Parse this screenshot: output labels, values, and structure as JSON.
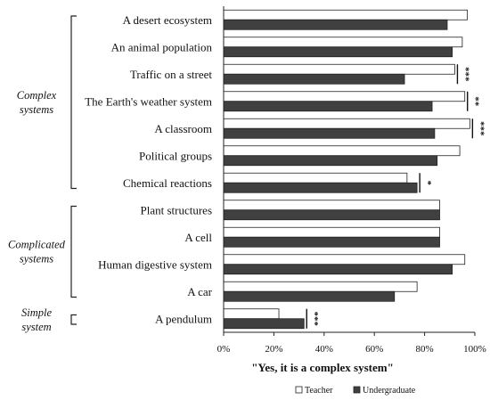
{
  "chart_data": {
    "type": "bar",
    "orientation": "horizontal",
    "xlabel": "\"Yes, it is a complex system\"",
    "ylabel": "",
    "xlim": [
      0,
      100
    ],
    "x_ticks": [
      "0%",
      "20%",
      "40%",
      "60%",
      "80%",
      "100%"
    ],
    "grid": false,
    "legend_position": "bottom-right",
    "categories": [
      "A desert ecosystem",
      "An animal population",
      "Traffic on a street",
      "The Earth's weather system",
      "A classroom",
      "Political groups",
      "Chemical reactions",
      "Plant structures",
      "A cell",
      "Human digestive system",
      "A car",
      "A pendulum"
    ],
    "series": [
      {
        "name": "Teacher",
        "color": "#ffffff",
        "values": [
          97,
          95,
          92,
          96,
          98,
          94,
          73,
          86,
          86,
          96,
          77,
          22
        ]
      },
      {
        "name": "Undergraduate",
        "color": "#404040",
        "values": [
          89,
          91,
          72,
          83,
          84,
          85,
          77,
          86,
          86,
          91,
          68,
          32
        ]
      }
    ],
    "groups": [
      {
        "label_lines": [
          "Complex",
          "systems"
        ],
        "categories": [
          0,
          6
        ]
      },
      {
        "label_lines": [
          "Complicated",
          "systems"
        ],
        "categories": [
          7,
          10
        ]
      },
      {
        "label_lines": [
          "Simple",
          "system"
        ],
        "categories": [
          11,
          11
        ]
      }
    ],
    "significance": [
      {
        "categories": [
          2,
          2
        ],
        "label": "***"
      },
      {
        "categories": [
          3,
          3
        ],
        "label": "**"
      },
      {
        "categories": [
          4,
          4
        ],
        "label": "***"
      },
      {
        "categories": [
          6,
          6
        ],
        "label": "*"
      },
      {
        "categories": [
          11,
          11
        ],
        "label": "***"
      }
    ]
  }
}
